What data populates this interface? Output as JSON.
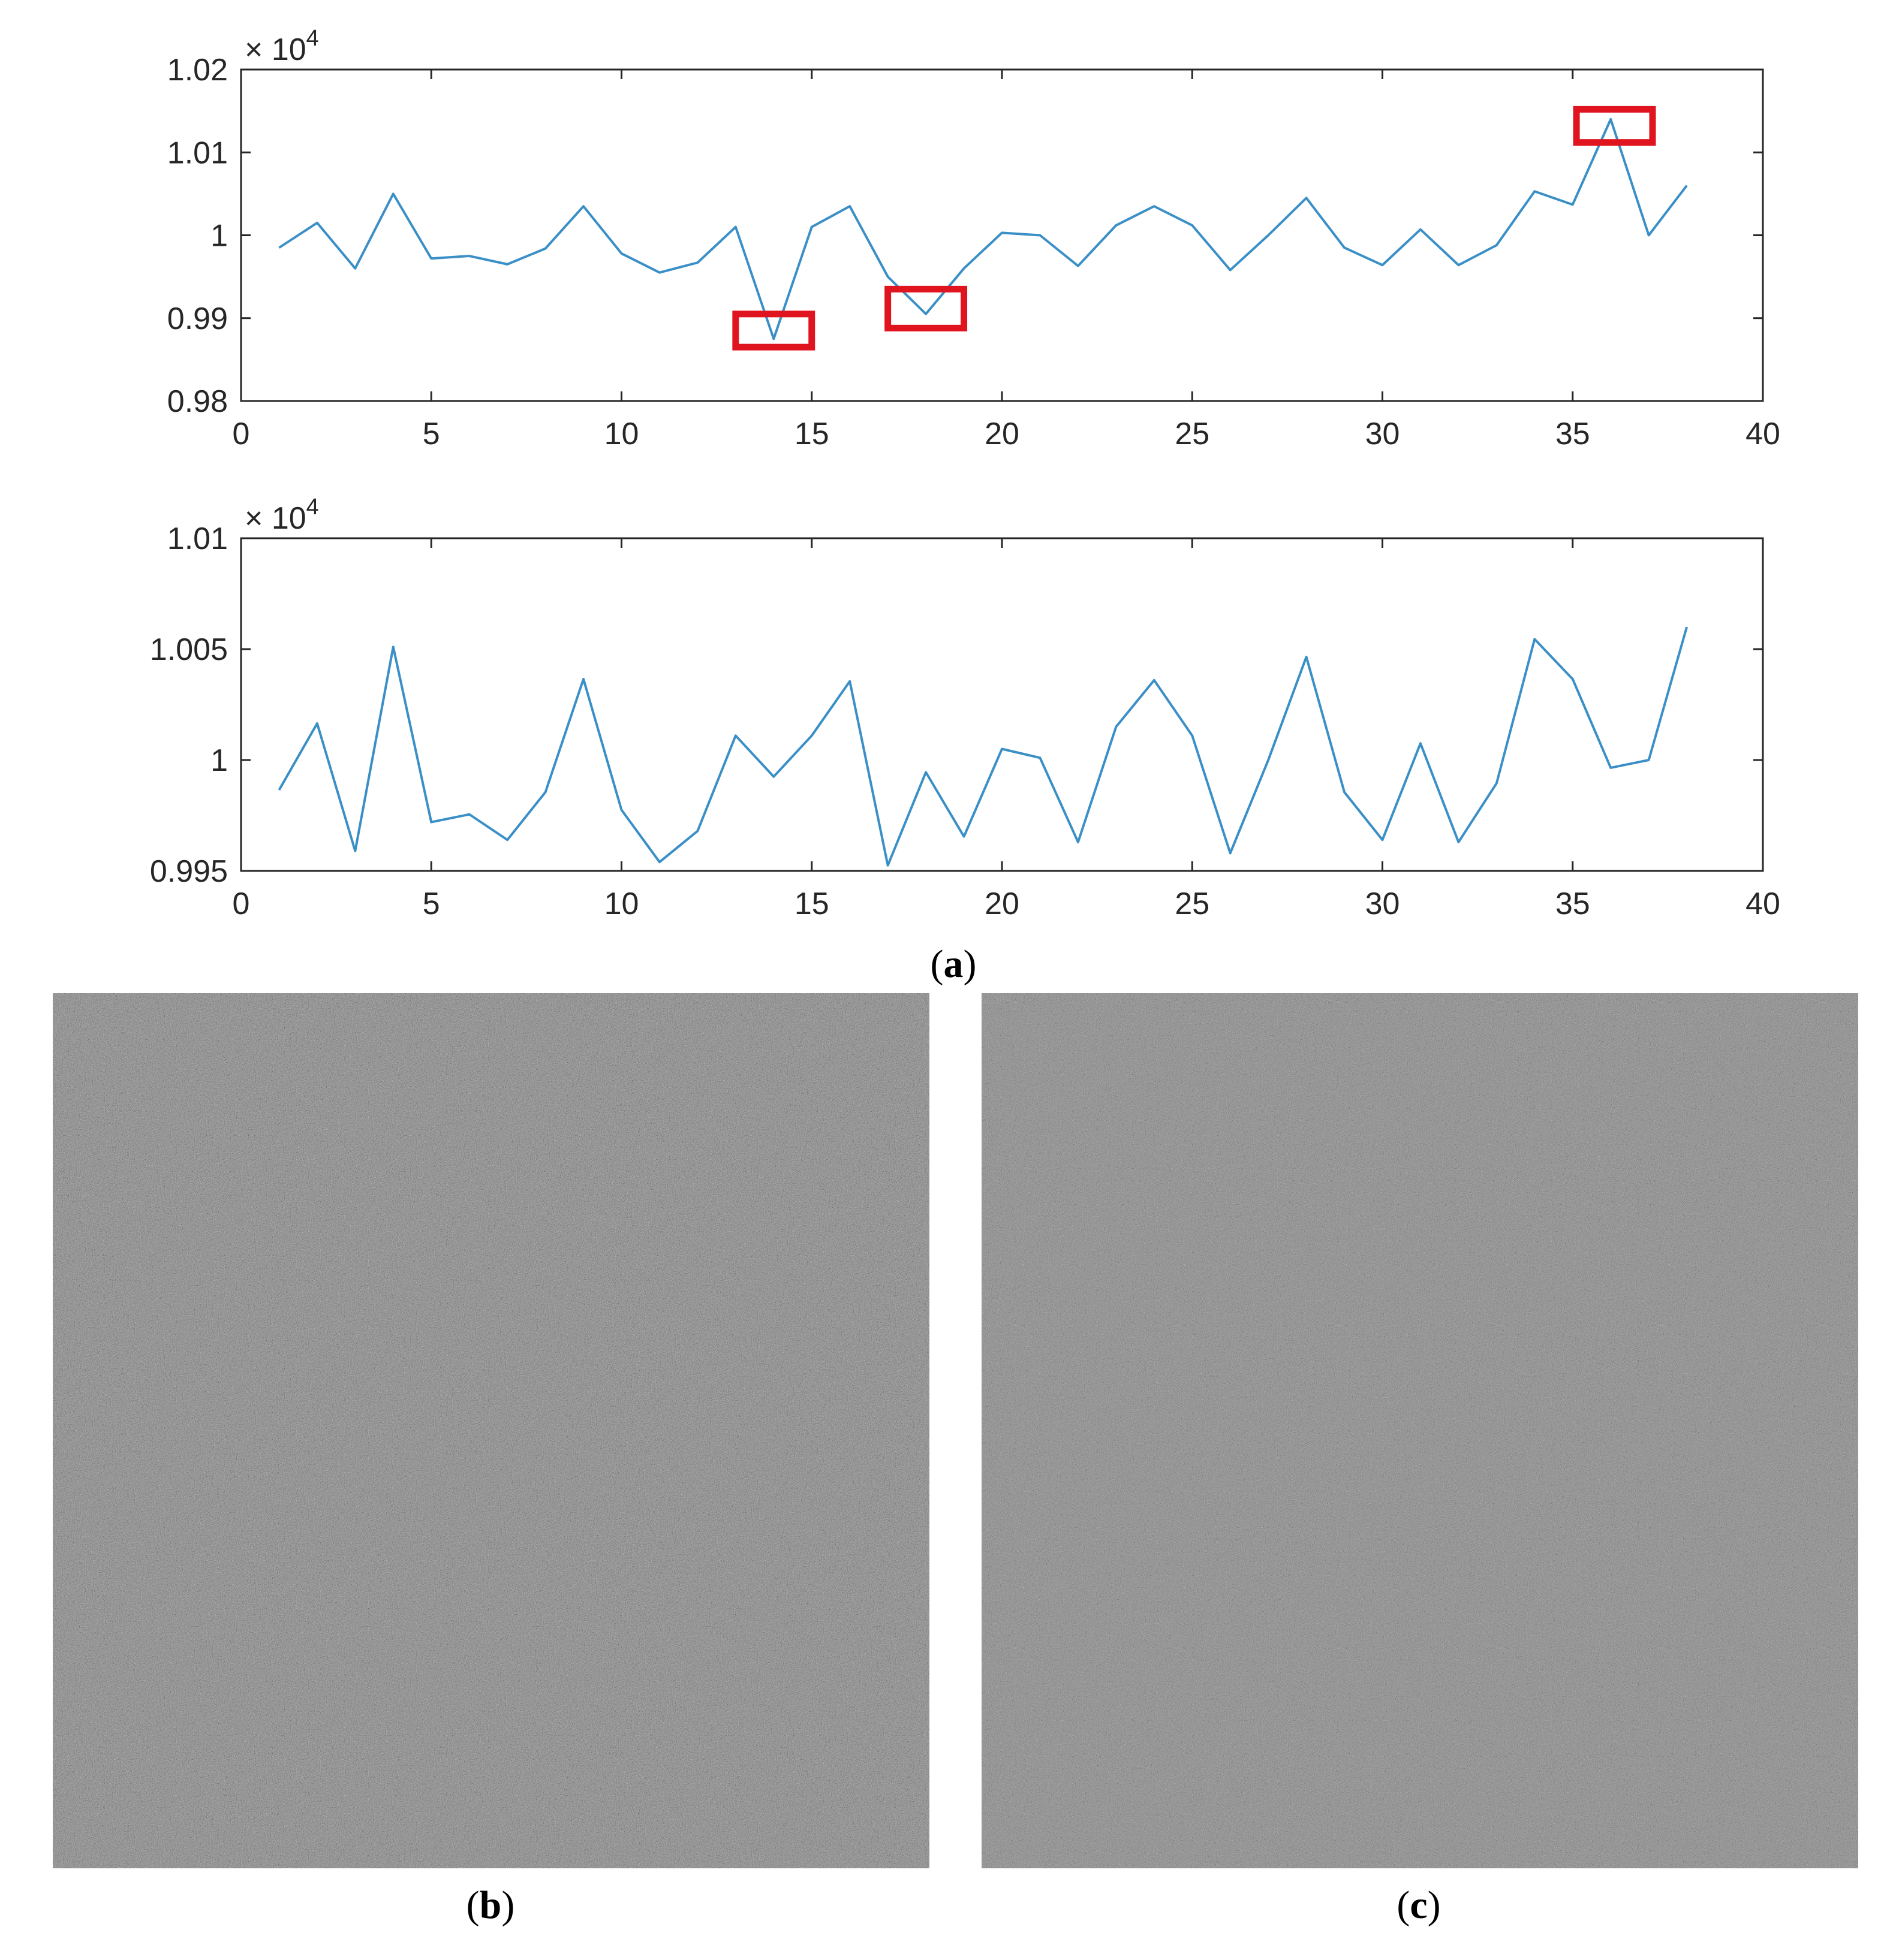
{
  "chart_data": [
    {
      "type": "line",
      "panel": "a-top",
      "exponent_label": "× 10",
      "exponent_power": "4",
      "x": [
        1,
        2,
        3,
        4,
        5,
        6,
        7,
        8,
        9,
        10,
        11,
        12,
        13,
        14,
        15,
        16,
        17,
        18,
        19,
        20,
        21,
        22,
        23,
        24,
        25,
        26,
        27,
        28,
        29,
        30,
        31,
        32,
        33,
        34,
        35,
        36,
        37,
        38
      ],
      "series": [
        {
          "color": "#3a8fc7",
          "values": [
            0.9985,
            1.0015,
            0.996,
            1.005,
            0.9972,
            0.9975,
            0.9965,
            0.9984,
            1.0035,
            0.9978,
            0.9955,
            0.9967,
            1.001,
            0.9875,
            1.001,
            1.0035,
            0.995,
            0.9905,
            0.996,
            1.0003,
            1.0,
            0.9963,
            1.0012,
            1.0035,
            1.0012,
            0.9958,
            1.0,
            1.0045,
            0.9985,
            0.9964,
            1.0007,
            0.9964,
            0.9988,
            1.0053,
            1.0037,
            1.014,
            1.0,
            1.006
          ]
        }
      ],
      "xlim": [
        0,
        40
      ],
      "ylim": [
        0.98,
        1.02
      ],
      "xticks": [
        "0",
        "5",
        "10",
        "15",
        "20",
        "25",
        "30",
        "35",
        "40"
      ],
      "yticks": [
        "0.98",
        "0.99",
        "1",
        "1.01",
        "1.02"
      ],
      "highlights": [
        {
          "x": [
            13,
            15
          ],
          "y": [
            0.9865,
            0.9905
          ],
          "color": "#e0141e"
        },
        {
          "x": [
            17,
            19
          ],
          "y": [
            0.9888,
            0.9935
          ],
          "color": "#e0141e"
        },
        {
          "x": [
            35.1,
            37.1
          ],
          "y": [
            1.0112,
            1.0152
          ],
          "color": "#e0141e"
        }
      ]
    },
    {
      "type": "line",
      "panel": "a-bottom",
      "exponent_label": "× 10",
      "exponent_power": "4",
      "x": [
        1,
        2,
        3,
        4,
        5,
        6,
        7,
        8,
        9,
        10,
        11,
        12,
        13,
        14,
        15,
        16,
        17,
        18,
        19,
        20,
        21,
        22,
        23,
        24,
        25,
        26,
        27,
        28,
        29,
        30,
        31,
        32,
        33,
        34,
        35,
        36,
        37,
        38
      ],
      "series": [
        {
          "color": "#3a8fc7",
          "values": [
            0.99865,
            1.00165,
            0.9959,
            1.0051,
            0.9972,
            0.99755,
            0.9964,
            0.99855,
            1.00365,
            0.99775,
            0.9954,
            0.9968,
            1.0011,
            0.99925,
            1.0011,
            1.00355,
            0.99525,
            0.99945,
            0.99655,
            1.0005,
            1.0001,
            0.9963,
            1.0015,
            1.0036,
            1.0011,
            0.9958,
            1.0,
            1.00465,
            0.99855,
            0.9964,
            1.00075,
            0.9963,
            0.99895,
            1.00545,
            1.00365,
            0.99965,
            1.0,
            1.006
          ]
        }
      ],
      "xlim": [
        0,
        40
      ],
      "ylim": [
        0.995,
        1.01
      ],
      "xticks": [
        "0",
        "5",
        "10",
        "15",
        "20",
        "25",
        "30",
        "35",
        "40"
      ],
      "yticks": [
        "0.995",
        "1",
        "1.005",
        "1.01"
      ]
    }
  ],
  "captions": {
    "a": {
      "open": "(",
      "letter": "a",
      "close": ")"
    },
    "b": {
      "open": "(",
      "letter": "b",
      "close": ")"
    },
    "c": {
      "open": "(",
      "letter": "c",
      "close": ")"
    }
  },
  "images": {
    "b": {
      "description_icon": "noise-texture-image",
      "base_color": "#8a8a8a"
    },
    "c": {
      "description_icon": "noise-texture-image",
      "base_color": "#8c8c8c"
    }
  }
}
